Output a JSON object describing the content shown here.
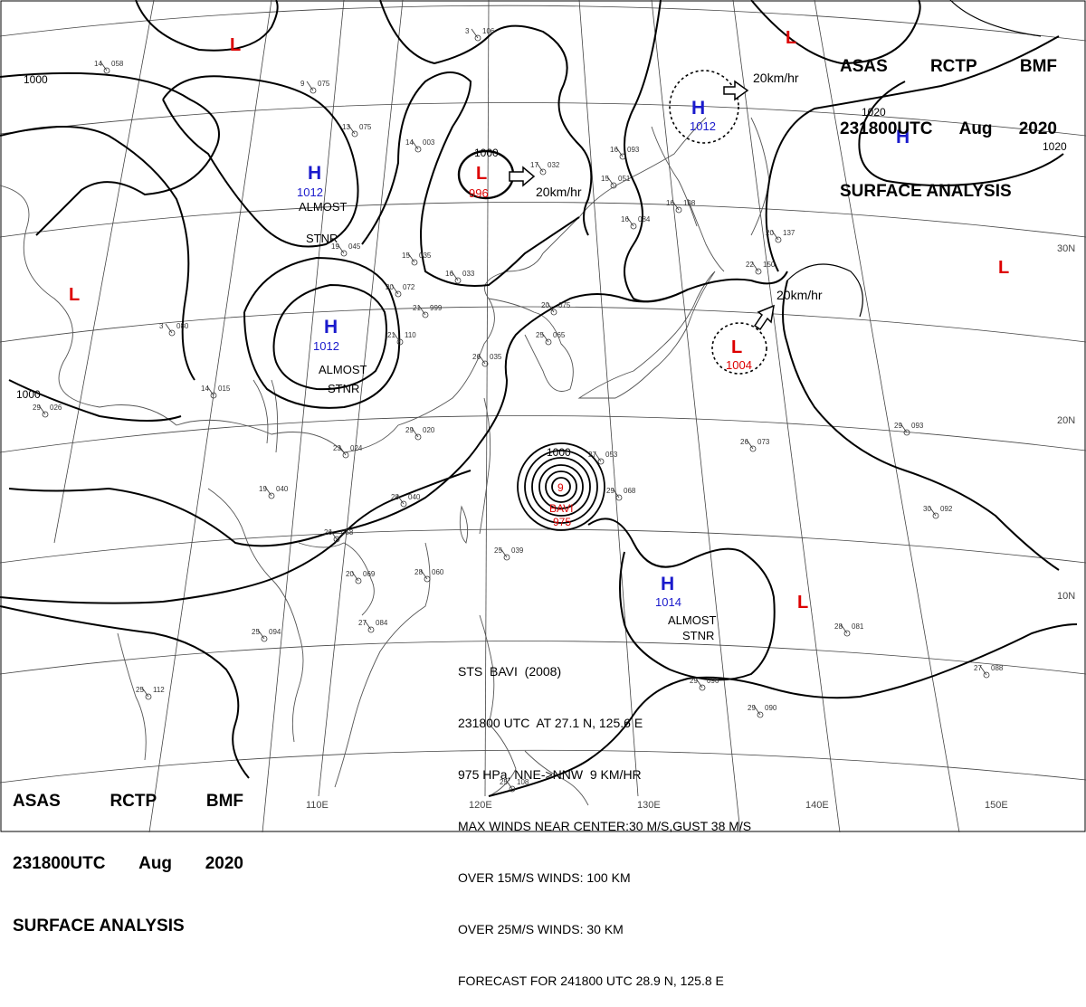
{
  "header": {
    "line1": [
      "ASAS",
      "RCTP",
      "BMF"
    ],
    "line2": [
      "231800UTC",
      "Aug",
      "2020"
    ],
    "line3": "SURFACE ANALYSIS"
  },
  "longitude_labels": [
    "110E",
    "120E",
    "130E",
    "140E",
    "150E"
  ],
  "latitude_labels": [
    "30N",
    "20N",
    "10N"
  ],
  "isobar_labels": {
    "west_top": "1000",
    "west_bottom": "1000",
    "low_center": "1000",
    "east_a": "1020",
    "east_b": "1020",
    "typhoon": "1000"
  },
  "pressure_systems": [
    {
      "id": "h-1012-north",
      "type": "H",
      "value": "1012",
      "note": [
        "ALMOST",
        "STNR"
      ]
    },
    {
      "id": "h-1012-central",
      "type": "H",
      "value": "1012",
      "note": [
        "ALMOST",
        "STNR"
      ]
    },
    {
      "id": "h-1012-ne",
      "type": "H",
      "value": "1012",
      "note": []
    },
    {
      "id": "h-east",
      "type": "H",
      "value": "",
      "note": []
    },
    {
      "id": "h-1014",
      "type": "H",
      "value": "1014",
      "note": [
        "ALMOST",
        "STNR"
      ]
    },
    {
      "id": "l-996",
      "type": "L",
      "value": "996",
      "note": []
    },
    {
      "id": "l-1004",
      "type": "L",
      "value": "1004",
      "note": []
    },
    {
      "id": "l-west",
      "type": "L",
      "value": "",
      "note": []
    },
    {
      "id": "l-nw",
      "type": "L",
      "value": "",
      "note": []
    },
    {
      "id": "l-ne",
      "type": "L",
      "value": "",
      "note": []
    },
    {
      "id": "l-east",
      "type": "L",
      "value": "",
      "note": []
    },
    {
      "id": "l-south",
      "type": "L",
      "value": "",
      "note": []
    }
  ],
  "movement_labels": [
    "20km/hr",
    "20km/hr",
    "20km/hr"
  ],
  "typhoon": {
    "center_digit": "9",
    "name": "BAVI",
    "pressure": "975"
  },
  "storm_info": [
    "STS  BAVI  (2008)",
    "231800 UTC  AT 27.1 N, 125.6 E",
    "975 HPa, NNE->NNW  9 KM/HR",
    "MAX WINDS NEAR CENTER:30 M/S,GUST 38 M/S",
    "OVER 15M/S WINDS: 100 KM",
    "OVER 25M/S WINDS: 30 KM",
    "FORECAST FOR 241800 UTC 28.9 N, 125.8 E"
  ],
  "stations": [
    {
      "p": "106",
      "t": "3"
    },
    {
      "p": "058",
      "t": "14"
    },
    {
      "p": "075",
      "t": "9"
    },
    {
      "p": "075",
      "t": "13"
    },
    {
      "p": "003",
      "t": "14"
    },
    {
      "p": "032",
      "t": "17"
    },
    {
      "p": "093",
      "t": "16"
    },
    {
      "p": "051",
      "t": "15"
    },
    {
      "p": "084",
      "t": "16"
    },
    {
      "p": "108",
      "t": "16"
    },
    {
      "p": "137",
      "t": "20"
    },
    {
      "p": "150",
      "t": "22"
    },
    {
      "p": "045",
      "t": "19"
    },
    {
      "p": "035",
      "t": "15"
    },
    {
      "p": "072",
      "t": "20"
    },
    {
      "p": "033",
      "t": "16"
    },
    {
      "p": "999",
      "t": "21"
    },
    {
      "p": "075",
      "t": "20"
    },
    {
      "p": "065",
      "t": "25"
    },
    {
      "p": "110",
      "t": "21"
    },
    {
      "p": "035",
      "t": "26"
    },
    {
      "p": "080",
      "t": "3"
    },
    {
      "p": "015",
      "t": "14"
    },
    {
      "p": "026",
      "t": "29"
    },
    {
      "p": "020",
      "t": "29"
    },
    {
      "p": "024",
      "t": "23"
    },
    {
      "p": "053",
      "t": "27"
    },
    {
      "p": "068",
      "t": "29"
    },
    {
      "p": "040",
      "t": "19"
    },
    {
      "p": "040",
      "t": "28"
    },
    {
      "p": "058",
      "t": "26"
    },
    {
      "p": "039",
      "t": "25"
    },
    {
      "p": "060",
      "t": "28"
    },
    {
      "p": "069",
      "t": "20"
    },
    {
      "p": "084",
      "t": "27"
    },
    {
      "p": "094",
      "t": "25"
    },
    {
      "p": "073",
      "t": "26"
    },
    {
      "p": "093",
      "t": "29"
    },
    {
      "p": "092",
      "t": "30"
    },
    {
      "p": "081",
      "t": "28"
    },
    {
      "p": "096",
      "t": "29"
    },
    {
      "p": "090",
      "t": "29"
    },
    {
      "p": "088",
      "t": "27"
    },
    {
      "p": "112",
      "t": "25"
    },
    {
      "p": "108",
      "t": "25"
    }
  ]
}
